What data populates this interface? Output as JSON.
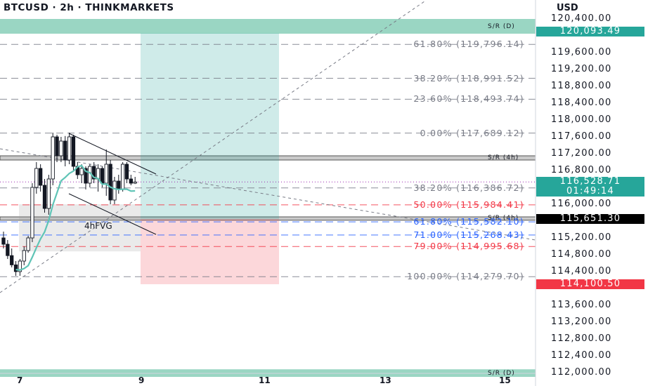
{
  "header": {
    "title": "BTCUSD · 2h · THINKMARKETS",
    "currency": "USD"
  },
  "chart_data": {
    "type": "candlestick",
    "symbol": "BTCUSD",
    "interval": "2h",
    "source": "THINKMARKETS",
    "y_unit": "USD",
    "ylim": [
      112000,
      120400
    ],
    "y_ticks": [
      {
        "value": 120400,
        "label": "120,400.00"
      },
      {
        "value": 119600,
        "label": "119,600.00"
      },
      {
        "value": 119200,
        "label": "119,200.00"
      },
      {
        "value": 118800,
        "label": "118,800.00"
      },
      {
        "value": 118400,
        "label": "118,400.00"
      },
      {
        "value": 118000,
        "label": "118,000.00"
      },
      {
        "value": 117600,
        "label": "117,600.00"
      },
      {
        "value": 117200,
        "label": "117,200.00"
      },
      {
        "value": 116800,
        "label": "116,800.00"
      },
      {
        "value": 116000,
        "label": "116,000.00"
      },
      {
        "value": 115200,
        "label": "115,200.00"
      },
      {
        "value": 114800,
        "label": "114,800.00"
      },
      {
        "value": 114400,
        "label": "114,400.00"
      },
      {
        "value": 113600,
        "label": "113,600.00"
      },
      {
        "value": 113200,
        "label": "113,200.00"
      },
      {
        "value": 112800,
        "label": "112,800.00"
      },
      {
        "value": 112400,
        "label": "112,400.00"
      },
      {
        "value": 112000,
        "label": "112,000.00"
      }
    ],
    "x_ticks": [
      "7",
      "9",
      "11",
      "13",
      "15"
    ],
    "price_labels": [
      {
        "value": 120093.49,
        "text": "120,093.49",
        "color": "#26a69a"
      },
      {
        "value": 116528.71,
        "text": "116,528.71",
        "sub": "01:49:14",
        "color": "#26a69a"
      },
      {
        "value": 115651.3,
        "text": "115,651.30",
        "color": "#000000"
      },
      {
        "value": 114100.5,
        "text": "114,100.50",
        "color": "#f23645"
      }
    ],
    "fib_levels": [
      {
        "label": "61.80% (119,796.14)",
        "value": 119796.14,
        "color": "#787b86"
      },
      {
        "label": "38.20% (118,991.52)",
        "value": 118991.52,
        "color": "#787b86"
      },
      {
        "label": "23.60% (118,493.74)",
        "value": 118493.74,
        "color": "#787b86"
      },
      {
        "label": "0.00% (117,689.12)",
        "value": 117689.12,
        "color": "#787b86"
      },
      {
        "label": "38.20% (116,386.72)",
        "value": 116386.72,
        "color": "#787b86"
      },
      {
        "label": "50.00% (115,984.41)",
        "value": 115984.41,
        "color": "#f23645"
      },
      {
        "label": "61.80% (115,582.10)",
        "value": 115582.1,
        "color": "#2962ff"
      },
      {
        "label": "71.00% (115,268.43)",
        "value": 115268.43,
        "color": "#2962ff"
      },
      {
        "label": "79.00% (114,995.68)",
        "value": 114995.68,
        "color": "#f23645"
      },
      {
        "label": "100.00% (114,279.70)",
        "value": 114279.7,
        "color": "#787b86"
      }
    ],
    "zones": [
      {
        "label": "S/R (D)",
        "from": 120050,
        "to": 120400,
        "color": "#88cfb8"
      },
      {
        "label": "S/R (4h)",
        "from": 117050,
        "to": 117150,
        "color": "#9e9e9e"
      },
      {
        "label": "S/R (4h)",
        "from": 115620,
        "to": 115700,
        "color": "#9e9e9e"
      },
      {
        "label": "S/R (D)",
        "from": 111900,
        "to": 112080,
        "color": "#88cfb8"
      }
    ],
    "fvg": {
      "label": "4hFVG",
      "from": 114880,
      "to": 116000
    },
    "position": {
      "entry": 115651.3,
      "target": 120093.49,
      "stop": 114100.5
    },
    "candles": [
      {
        "o": 115200,
        "h": 115350,
        "l": 114950,
        "c": 115050
      },
      {
        "o": 115050,
        "h": 115150,
        "l": 114700,
        "c": 114780
      },
      {
        "o": 114780,
        "h": 114950,
        "l": 114500,
        "c": 114560
      },
      {
        "o": 114560,
        "h": 114650,
        "l": 114300,
        "c": 114400
      },
      {
        "o": 114400,
        "h": 114700,
        "l": 114300,
        "c": 114650
      },
      {
        "o": 114650,
        "h": 115000,
        "l": 114550,
        "c": 114900
      },
      {
        "o": 114900,
        "h": 115250,
        "l": 114850,
        "c": 115200
      },
      {
        "o": 115200,
        "h": 116500,
        "l": 115100,
        "c": 116400
      },
      {
        "o": 116400,
        "h": 117000,
        "l": 116250,
        "c": 116850
      },
      {
        "o": 116850,
        "h": 116950,
        "l": 116300,
        "c": 116450
      },
      {
        "o": 116450,
        "h": 116600,
        "l": 115800,
        "c": 115900
      },
      {
        "o": 115900,
        "h": 116700,
        "l": 115750,
        "c": 116600
      },
      {
        "o": 116600,
        "h": 117700,
        "l": 116450,
        "c": 117600
      },
      {
        "o": 117600,
        "h": 117650,
        "l": 117000,
        "c": 117150
      },
      {
        "o": 117150,
        "h": 117600,
        "l": 117000,
        "c": 117500
      },
      {
        "o": 117500,
        "h": 117620,
        "l": 116900,
        "c": 117050
      },
      {
        "o": 117050,
        "h": 117700,
        "l": 116950,
        "c": 117600
      },
      {
        "o": 117600,
        "h": 117650,
        "l": 116800,
        "c": 116900
      },
      {
        "o": 116900,
        "h": 117000,
        "l": 116600,
        "c": 116700
      },
      {
        "o": 116700,
        "h": 116950,
        "l": 116500,
        "c": 116850
      },
      {
        "o": 116850,
        "h": 116900,
        "l": 116350,
        "c": 116500
      },
      {
        "o": 116500,
        "h": 116950,
        "l": 116400,
        "c": 116900
      },
      {
        "o": 116900,
        "h": 117000,
        "l": 116500,
        "c": 116600
      },
      {
        "o": 116600,
        "h": 116950,
        "l": 116300,
        "c": 116850
      },
      {
        "o": 116850,
        "h": 116900,
        "l": 116400,
        "c": 116500
      },
      {
        "o": 116500,
        "h": 117300,
        "l": 116200,
        "c": 116950
      },
      {
        "o": 116950,
        "h": 117050,
        "l": 116000,
        "c": 116100
      },
      {
        "o": 116100,
        "h": 116650,
        "l": 116000,
        "c": 116550
      },
      {
        "o": 116550,
        "h": 116700,
        "l": 116250,
        "c": 116350
      },
      {
        "o": 116350,
        "h": 117000,
        "l": 116300,
        "c": 116950
      },
      {
        "o": 116950,
        "h": 117000,
        "l": 116500,
        "c": 116600
      },
      {
        "o": 116600,
        "h": 116700,
        "l": 116450,
        "c": 116500
      },
      {
        "o": 116500,
        "h": 116650,
        "l": 116480,
        "c": 116528.71
      }
    ]
  }
}
